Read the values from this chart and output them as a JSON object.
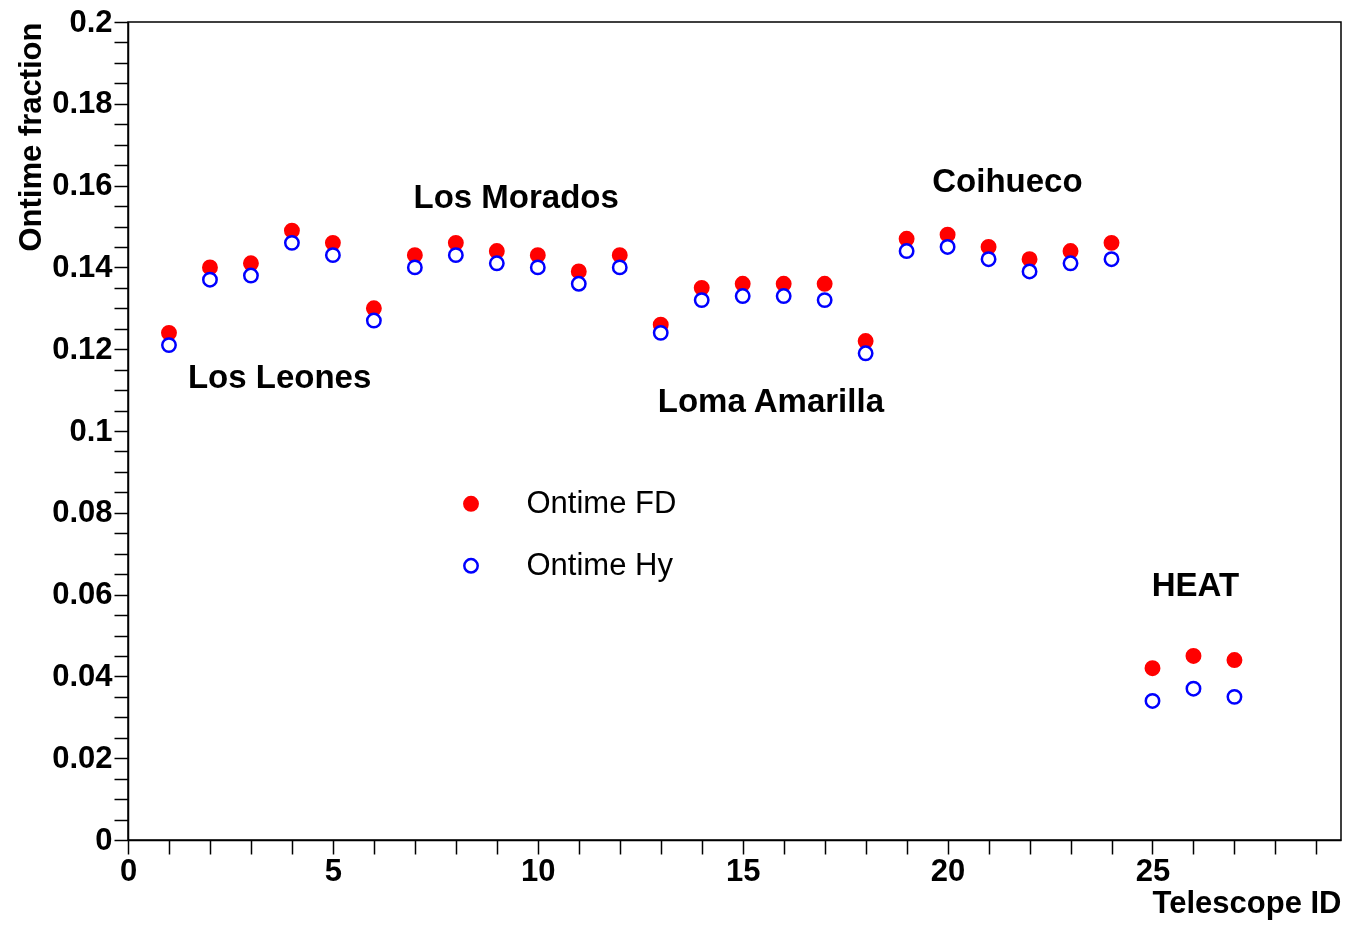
{
  "chart_data": {
    "type": "scatter",
    "xlabel": "Telescope ID",
    "ylabel": "Ontime fraction",
    "x": [
      1,
      2,
      3,
      4,
      5,
      6,
      7,
      8,
      9,
      10,
      11,
      12,
      13,
      14,
      15,
      16,
      17,
      18,
      19,
      20,
      21,
      22,
      23,
      24,
      25,
      26,
      27
    ],
    "series": [
      {
        "name": "Ontime FD",
        "color": "#ff0000",
        "values": [
          0.124,
          0.14,
          0.141,
          0.149,
          0.146,
          0.13,
          0.143,
          0.146,
          0.144,
          0.143,
          0.139,
          0.143,
          0.126,
          0.135,
          0.136,
          0.136,
          0.136,
          0.122,
          0.147,
          0.148,
          0.145,
          0.142,
          0.144,
          0.146,
          0.042,
          0.045,
          0.044
        ]
      },
      {
        "name": "Ontime Hy",
        "color": "#0000ff",
        "values": [
          0.121,
          0.137,
          0.138,
          0.146,
          0.143,
          0.127,
          0.14,
          0.143,
          0.141,
          0.14,
          0.136,
          0.14,
          0.124,
          0.132,
          0.133,
          0.133,
          0.132,
          0.119,
          0.144,
          0.145,
          0.142,
          0.139,
          0.141,
          0.142,
          0.034,
          0.037,
          0.035
        ]
      }
    ],
    "marker": "circle",
    "xlim": [
      0,
      29.6
    ],
    "ylim": [
      0,
      0.2
    ],
    "xticks": [
      0,
      {
        "value": 1,
        "label": null
      },
      {
        "value": 2,
        "label": null
      },
      {
        "value": 3,
        "label": null
      },
      {
        "value": 4,
        "label": null
      },
      5,
      {
        "value": 6,
        "label": null
      },
      {
        "value": 7,
        "label": null
      },
      {
        "value": 8,
        "label": null
      },
      {
        "value": 9,
        "label": null
      },
      10,
      {
        "value": 11,
        "label": null
      },
      {
        "value": 12,
        "label": null
      },
      {
        "value": 13,
        "label": null
      },
      {
        "value": 14,
        "label": null
      },
      15,
      {
        "value": 16,
        "label": null
      },
      {
        "value": 17,
        "label": null
      },
      {
        "value": 18,
        "label": null
      },
      {
        "value": 19,
        "label": null
      },
      20,
      {
        "value": 21,
        "label": null
      },
      {
        "value": 22,
        "label": null
      },
      {
        "value": 23,
        "label": null
      },
      {
        "value": 24,
        "label": null
      },
      25,
      {
        "value": 26,
        "label": null
      },
      {
        "value": 27,
        "label": null
      },
      {
        "value": 28,
        "label": null
      },
      {
        "value": 29,
        "label": null
      }
    ],
    "yticks": [
      0,
      {
        "value": 0.005,
        "label": null
      },
      {
        "value": 0.01,
        "label": null
      },
      {
        "value": 0.015,
        "label": null
      },
      0.02,
      {
        "value": 0.025,
        "label": null
      },
      {
        "value": 0.03,
        "label": null
      },
      {
        "value": 0.035,
        "label": null
      },
      0.04,
      {
        "value": 0.045,
        "label": null
      },
      {
        "value": 0.05,
        "label": null
      },
      {
        "value": 0.055,
        "label": null
      },
      0.06,
      {
        "value": 0.065,
        "label": null
      },
      {
        "value": 0.07,
        "label": null
      },
      {
        "value": 0.075,
        "label": null
      },
      0.08,
      {
        "value": 0.085,
        "label": null
      },
      {
        "value": 0.09,
        "label": null
      },
      {
        "value": 0.095,
        "label": null
      },
      0.1,
      {
        "value": 0.105,
        "label": null
      },
      {
        "value": 0.11,
        "label": null
      },
      {
        "value": 0.115,
        "label": null
      },
      0.12,
      {
        "value": 0.125,
        "label": null
      },
      {
        "value": 0.13,
        "label": null
      },
      {
        "value": 0.135,
        "label": null
      },
      0.14,
      {
        "value": 0.145,
        "label": null
      },
      {
        "value": 0.15,
        "label": null
      },
      {
        "value": 0.155,
        "label": null
      },
      0.16,
      {
        "value": 0.165,
        "label": null
      },
      {
        "value": 0.17,
        "label": null
      },
      {
        "value": 0.175,
        "label": null
      },
      0.18,
      {
        "value": 0.185,
        "label": null
      },
      {
        "value": 0.19,
        "label": null
      },
      {
        "value": 0.195,
        "label": null
      },
      0.2
    ],
    "grid": false,
    "legend": "center",
    "annotations": [
      "Los Leones",
      "Los Morados",
      "Loma Amarilla",
      "Coihueco",
      "HEAT"
    ]
  }
}
